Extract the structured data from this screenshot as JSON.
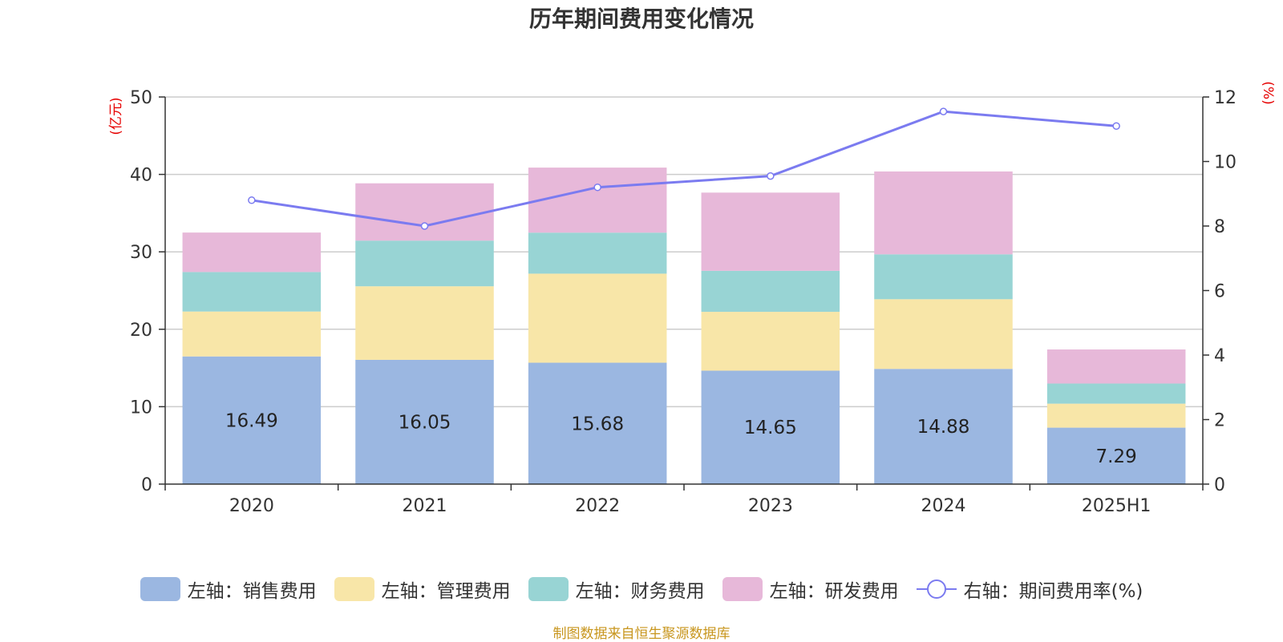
{
  "title": "历年期间费用变化情况",
  "source": "制图数据来自恒生聚源数据库",
  "colors": {
    "sales": "#9bb7e1",
    "admin": "#f8e6a8",
    "finance": "#98d4d4",
    "rd": "#e7b8d9",
    "rate": "#7b7bf0",
    "axis_unit": "#e60000",
    "grid": "#cccccc"
  },
  "chart_data": {
    "type": "bar",
    "stacked": true,
    "categories": [
      "2020",
      "2021",
      "2022",
      "2023",
      "2024",
      "2025H1"
    ],
    "left_axis": {
      "unit": "(亿元)",
      "ylim": [
        0,
        50
      ],
      "ticks": [
        "0",
        "10",
        "20",
        "30",
        "40",
        "50"
      ]
    },
    "right_axis": {
      "unit": "(%)",
      "ylim": [
        0,
        12
      ],
      "ticks": [
        "0",
        "2",
        "4",
        "6",
        "8",
        "10",
        "12"
      ]
    },
    "series": [
      {
        "name": "左轴：销售费用",
        "axis": "left",
        "color_key": "sales",
        "values": [
          16.49,
          16.05,
          15.68,
          14.65,
          14.88,
          7.29
        ],
        "labels": [
          "16.49",
          "16.05",
          "15.68",
          "14.65",
          "14.88",
          "7.29"
        ]
      },
      {
        "name": "左轴：管理费用",
        "axis": "left",
        "color_key": "admin",
        "values": [
          5.8,
          9.5,
          11.5,
          7.6,
          9.0,
          3.1
        ]
      },
      {
        "name": "左轴：财务费用",
        "axis": "left",
        "color_key": "finance",
        "values": [
          5.1,
          5.9,
          5.3,
          5.3,
          5.8,
          2.6
        ]
      },
      {
        "name": "左轴：研发费用",
        "axis": "left",
        "color_key": "rd",
        "values": [
          5.1,
          7.4,
          8.4,
          10.1,
          10.7,
          4.4
        ]
      },
      {
        "name": "右轴：期间费用率(%)",
        "axis": "right",
        "type": "line",
        "color_key": "rate",
        "values": [
          8.8,
          8.0,
          9.2,
          9.55,
          11.55,
          11.1
        ]
      }
    ],
    "grid": true,
    "legend_position": "bottom"
  }
}
